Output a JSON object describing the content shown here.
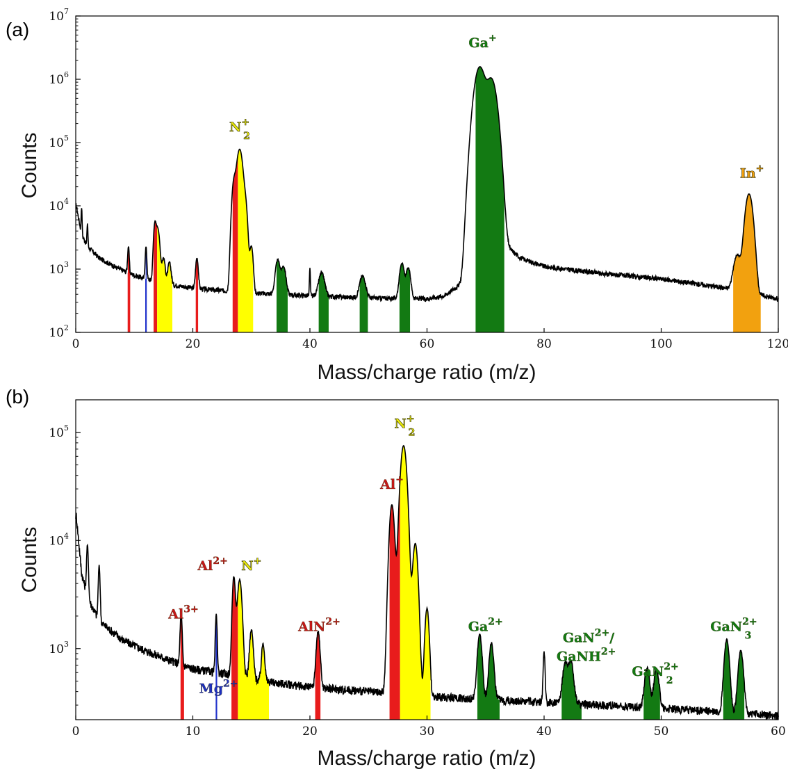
{
  "panels": [
    {
      "panel_label": "(a)",
      "chart_data": {
        "type": "line",
        "xlabel": "Mass/charge ratio (m/z)",
        "ylabel": "Counts",
        "xlim": [
          0,
          120
        ],
        "ylim": [
          100,
          10000000
        ],
        "yscale": "log",
        "grid": false,
        "xticks": [
          0,
          20,
          40,
          60,
          80,
          100,
          120
        ],
        "yticks": [
          {
            "value": 100,
            "base": "10",
            "exp": "2"
          },
          {
            "value": 1000,
            "base": "10",
            "exp": "3"
          },
          {
            "value": 10000,
            "base": "10",
            "exp": "4"
          },
          {
            "value": 100000,
            "base": "10",
            "exp": "5"
          },
          {
            "value": 1000000,
            "base": "10",
            "exp": "6"
          },
          {
            "value": 10000000,
            "base": "10",
            "exp": "7"
          }
        ],
        "background": {
          "points": [
            [
              0.1,
              10000
            ],
            [
              1,
              3500
            ],
            [
              2,
              2300
            ],
            [
              4,
              1500
            ],
            [
              7,
              1050
            ],
            [
              10,
              800
            ],
            [
              14,
              620
            ],
            [
              20,
              500
            ],
            [
              30,
              420
            ],
            [
              40,
              380
            ],
            [
              50,
              350
            ],
            [
              60,
              340
            ],
            [
              63,
              380
            ],
            [
              65,
              520
            ],
            [
              67,
              620
            ],
            [
              68,
              600
            ],
            [
              73,
              2500
            ],
            [
              76,
              1500
            ],
            [
              80,
              1100
            ],
            [
              90,
              850
            ],
            [
              100,
              700
            ],
            [
              110,
              520
            ],
            [
              120,
              340
            ]
          ]
        },
        "peaks": [
          {
            "x": 1,
            "y": 6000,
            "color": "#000000"
          },
          {
            "x": 2,
            "y": 3000,
            "color": "#000000"
          },
          {
            "x": 9,
            "y": 1400,
            "color": "#e81c1c",
            "w": 0.12,
            "fill": false
          },
          {
            "x": 12,
            "y": 1550,
            "color": "#2233cc",
            "w": 0.12,
            "fill": false
          },
          {
            "x": 13.5,
            "y": 4000,
            "color": "#e81c1c",
            "w": 0.2
          },
          {
            "x": 14,
            "y": 3800,
            "color": "#e8e80c",
            "w": 0.3
          },
          {
            "x": 15,
            "y": 900,
            "color": "#e8e80c",
            "w": 0.25
          },
          {
            "x": 16,
            "y": 700,
            "color": "#e8e80c",
            "w": 0.25
          },
          {
            "x": 20.7,
            "y": 1000,
            "color": "#e81c1c",
            "w": 0.2
          },
          {
            "x": 27,
            "y": 21000,
            "color": "#e81c1c",
            "w": 0.3
          },
          {
            "x": 28,
            "y": 78000,
            "color": "#e8e80c",
            "w": 0.45
          },
          {
            "x": 29,
            "y": 8500,
            "color": "#e8e80c",
            "w": 0.3
          },
          {
            "x": 30,
            "y": 1900,
            "color": "#e8e80c",
            "w": 0.25
          },
          {
            "x": 34.5,
            "y": 1000,
            "color": "#137a13",
            "w": 0.35
          },
          {
            "x": 35.5,
            "y": 700,
            "color": "#137a13",
            "w": 0.35
          },
          {
            "x": 40,
            "y": 650,
            "color": "#000000"
          },
          {
            "x": 42,
            "y": 500,
            "color": "#137a13",
            "w": 0.45
          },
          {
            "x": 49,
            "y": 430,
            "color": "#137a13",
            "w": 0.45
          },
          {
            "x": 55.7,
            "y": 900,
            "color": "#137a13",
            "w": 0.35
          },
          {
            "x": 56.8,
            "y": 700,
            "color": "#137a13",
            "w": 0.35
          },
          {
            "x": 69,
            "y": 1550000,
            "color": "#137a13",
            "w": 0.75
          },
          {
            "x": 71,
            "y": 1000000,
            "color": "#137a13",
            "w": 0.75
          },
          {
            "x": 113,
            "y": 1200,
            "color": "#f2a10f",
            "w": 0.55
          },
          {
            "x": 115,
            "y": 15000,
            "color": "#f2a10f",
            "w": 0.55
          }
        ],
        "bands": [
          {
            "x0": 8.9,
            "x1": 9.3,
            "color": "#e81c1c"
          },
          {
            "x0": 11.95,
            "x1": 12.1,
            "color": "#2233cc"
          },
          {
            "x0": 13.3,
            "x1": 13.9,
            "color": "#e81c1c"
          },
          {
            "x0": 13.9,
            "x1": 16.5,
            "color": "#ffff00"
          },
          {
            "x0": 20.5,
            "x1": 20.9,
            "color": "#e81c1c"
          },
          {
            "x0": 26.8,
            "x1": 27.7,
            "color": "#e81c1c"
          },
          {
            "x0": 27.7,
            "x1": 30.3,
            "color": "#ffff00"
          },
          {
            "x0": 34.3,
            "x1": 36.2,
            "color": "#137a13"
          },
          {
            "x0": 41.5,
            "x1": 43.2,
            "color": "#137a13"
          },
          {
            "x0": 48.5,
            "x1": 49.9,
            "color": "#137a13"
          },
          {
            "x0": 55.3,
            "x1": 57.1,
            "color": "#137a13"
          },
          {
            "x0": 68.3,
            "x1": 73.2,
            "color": "#137a13"
          },
          {
            "x0": 112.3,
            "x1": 117.0,
            "color": "#f2a10f"
          }
        ],
        "annotations": [
          {
            "label": "Ga",
            "sup": "+",
            "sub": "",
            "x": 69.5,
            "y": 3200000,
            "color": "#137a13"
          },
          {
            "label": "N",
            "sup": "+",
            "sub": "2",
            "x": 28.0,
            "y": 150000,
            "color": "#e8e80c"
          },
          {
            "label": "In",
            "sup": "+",
            "sub": "",
            "x": 115.5,
            "y": 28000,
            "color": "#f2a10f"
          }
        ]
      }
    },
    {
      "panel_label": "(b)",
      "chart_data": {
        "type": "line",
        "xlabel": "Mass/charge ratio (m/z)",
        "ylabel": "Counts",
        "xlim": [
          0,
          60
        ],
        "ylim": [
          220,
          200000
        ],
        "yscale": "log",
        "grid": false,
        "xticks": [
          0,
          10,
          20,
          30,
          40,
          50,
          60
        ],
        "yticks": [
          {
            "value": 1000,
            "base": "10",
            "exp": "3"
          },
          {
            "value": 10000,
            "base": "10",
            "exp": "4"
          },
          {
            "value": 100000,
            "base": "10",
            "exp": "5"
          }
        ],
        "background": {
          "points": [
            [
              0.05,
              17000
            ],
            [
              0.5,
              5000
            ],
            [
              1,
              3000
            ],
            [
              2,
              1800
            ],
            [
              4,
              1200
            ],
            [
              6,
              950
            ],
            [
              8,
              780
            ],
            [
              10,
              650
            ],
            [
              13,
              580
            ],
            [
              16,
              500
            ],
            [
              20,
              440
            ],
            [
              25,
              400
            ],
            [
              30,
              360
            ],
            [
              35,
              340
            ],
            [
              40,
              320
            ],
            [
              45,
              300
            ],
            [
              50,
              280
            ],
            [
              55,
              260
            ],
            [
              60,
              240
            ]
          ]
        },
        "peaks": [
          {
            "x": 1,
            "y": 6000,
            "color": "#000000"
          },
          {
            "x": 2,
            "y": 4000,
            "color": "#000000"
          },
          {
            "x": 9,
            "y": 1350,
            "color": "#e81c1c",
            "w": 0.08
          },
          {
            "x": 12,
            "y": 1450,
            "color": "#000000"
          },
          {
            "x": 13.5,
            "y": 4000,
            "color": "#e81c1c",
            "w": 0.12
          },
          {
            "x": 14,
            "y": 3800,
            "color": "#e8e80c",
            "w": 0.18
          },
          {
            "x": 15,
            "y": 950,
            "color": "#e8e80c",
            "w": 0.14
          },
          {
            "x": 16,
            "y": 620,
            "color": "#e8e80c",
            "w": 0.12
          },
          {
            "x": 20.7,
            "y": 1000,
            "color": "#e81c1c",
            "w": 0.15
          },
          {
            "x": 27,
            "y": 21000,
            "color": "#e81c1c",
            "w": 0.2
          },
          {
            "x": 28,
            "y": 75000,
            "color": "#e8e80c",
            "w": 0.25
          },
          {
            "x": 29,
            "y": 9000,
            "color": "#e8e80c",
            "w": 0.2
          },
          {
            "x": 30,
            "y": 2000,
            "color": "#e8e80c",
            "w": 0.16
          },
          {
            "x": 34.5,
            "y": 1000,
            "color": "#137a13",
            "w": 0.18
          },
          {
            "x": 35.5,
            "y": 780,
            "color": "#137a13",
            "w": 0.18
          },
          {
            "x": 40,
            "y": 620,
            "color": "#000000"
          },
          {
            "x": 41.8,
            "y": 420,
            "color": "#137a13",
            "w": 0.2
          },
          {
            "x": 42.3,
            "y": 440,
            "color": "#137a13",
            "w": 0.2
          },
          {
            "x": 48.8,
            "y": 380,
            "color": "#137a13",
            "w": 0.2
          },
          {
            "x": 49.6,
            "y": 360,
            "color": "#137a13",
            "w": 0.2
          },
          {
            "x": 55.6,
            "y": 950,
            "color": "#137a13",
            "w": 0.2
          },
          {
            "x": 56.8,
            "y": 700,
            "color": "#137a13",
            "w": 0.2
          }
        ],
        "bands": [
          {
            "x0": 8.95,
            "x1": 9.25,
            "color": "#e81c1c"
          },
          {
            "x0": 11.95,
            "x1": 12.08,
            "color": "#2233cc"
          },
          {
            "x0": 13.3,
            "x1": 13.85,
            "color": "#e81c1c"
          },
          {
            "x0": 13.85,
            "x1": 16.5,
            "color": "#ffff00"
          },
          {
            "x0": 20.45,
            "x1": 20.9,
            "color": "#e81c1c"
          },
          {
            "x0": 26.8,
            "x1": 27.7,
            "color": "#e81c1c"
          },
          {
            "x0": 27.7,
            "x1": 30.3,
            "color": "#ffff00"
          },
          {
            "x0": 34.3,
            "x1": 36.2,
            "color": "#137a13"
          },
          {
            "x0": 41.5,
            "x1": 43.2,
            "color": "#137a13"
          },
          {
            "x0": 48.5,
            "x1": 49.9,
            "color": "#137a13"
          },
          {
            "x0": 55.3,
            "x1": 57.1,
            "color": "#137a13"
          }
        ],
        "annotations": [
          {
            "label": "Al",
            "sup": "3+",
            "sub": "",
            "x": 9.2,
            "y": 1900,
            "color": "#c41818"
          },
          {
            "label": "Mg",
            "sup": "2+",
            "sub": "",
            "x": 12.2,
            "y": 390,
            "color": "#1d2fbf"
          },
          {
            "label": "Al",
            "sup": "2+",
            "sub": "",
            "x": 11.7,
            "y": 5300,
            "color": "#c41818"
          },
          {
            "label": "N",
            "sup": "+",
            "sub": "",
            "x": 15.0,
            "y": 5300,
            "color": "#e8e80c"
          },
          {
            "label": "AlN",
            "sup": "2+",
            "sub": "",
            "x": 20.8,
            "y": 1450,
            "color": "#c41818"
          },
          {
            "label": "Al",
            "sup": "+",
            "sub": "",
            "x": 27.0,
            "y": 30000,
            "color": "#c41818"
          },
          {
            "label": "N",
            "sup": "+",
            "sub": "2",
            "x": 28.1,
            "y": 110000,
            "color": "#e8e80c"
          },
          {
            "label": "Ga",
            "sup": "2+",
            "sub": "",
            "x": 35.0,
            "y": 1450,
            "color": "#137a13"
          },
          {
            "label": "GaN",
            "sup": "2+",
            "sub": "",
            "x": 43.8,
            "y": 1150,
            "color": "#137a13",
            "suffix": "/"
          },
          {
            "label": "GaNH",
            "sup": "2+",
            "sub": "",
            "x": 43.6,
            "y": 770,
            "color": "#137a13"
          },
          {
            "label": "GaN",
            "sup": "2+",
            "sub": "2",
            "x": 49.5,
            "y": 560,
            "color": "#137a13"
          },
          {
            "label": "GaN",
            "sup": "2+",
            "sub": "3",
            "x": 56.2,
            "y": 1450,
            "color": "#137a13"
          }
        ]
      }
    }
  ]
}
